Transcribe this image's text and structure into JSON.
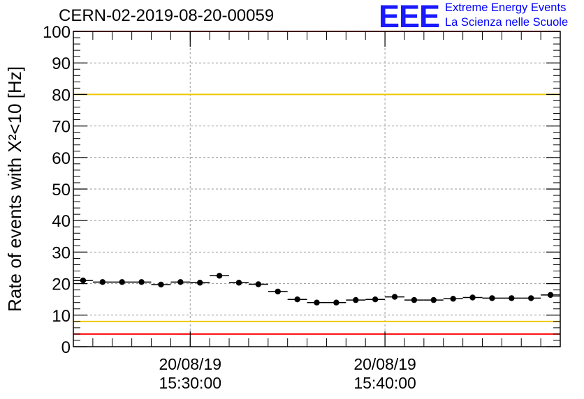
{
  "header": {
    "title": "CERN-02-2019-08-20-00059",
    "logo_text": "EEE",
    "org_line1": "Extreme Energy Events",
    "org_line2": "La Scienza nelle Scuole"
  },
  "chart_data": {
    "type": "scatter",
    "ylabel": "Rate of events with X²<10 [Hz]",
    "ylim": [
      0,
      100
    ],
    "xlim_minutes": [
      0,
      25
    ],
    "yticks": [
      "0",
      "10",
      "20",
      "30",
      "40",
      "50",
      "60",
      "70",
      "80",
      "90",
      "100"
    ],
    "xticks": [
      {
        "minute": 6,
        "date": "20/08/19",
        "time": "15:30:00"
      },
      {
        "minute": 16,
        "date": "20/08/19",
        "time": "15:40:00"
      }
    ],
    "grid": true,
    "series": [
      {
        "marker": "circle",
        "x_minutes": [
          0.5,
          1.5,
          2.5,
          3.5,
          4.5,
          5.5,
          6.5,
          7.5,
          8.5,
          9.5,
          10.5,
          11.5,
          12.5,
          13.5,
          14.5,
          15.5,
          16.5,
          17.5,
          18.5,
          19.5,
          20.5,
          21.5,
          22.5,
          23.5,
          24.5
        ],
        "values": [
          21,
          20.5,
          20.5,
          20.5,
          19.7,
          20.5,
          20.3,
          22.5,
          20.3,
          19.8,
          17.5,
          15,
          14,
          14,
          14.8,
          15,
          15.8,
          14.8,
          14.8,
          15.2,
          15.6,
          15.4,
          15.4,
          15.4,
          16.4
        ]
      }
    ],
    "reference_lines": [
      {
        "y": 100,
        "color": "#ff0000"
      },
      {
        "y": 80,
        "color": "#f0c800"
      },
      {
        "y": 8,
        "color": "#f0c800"
      },
      {
        "y": 4,
        "color": "#ff0000"
      }
    ]
  }
}
